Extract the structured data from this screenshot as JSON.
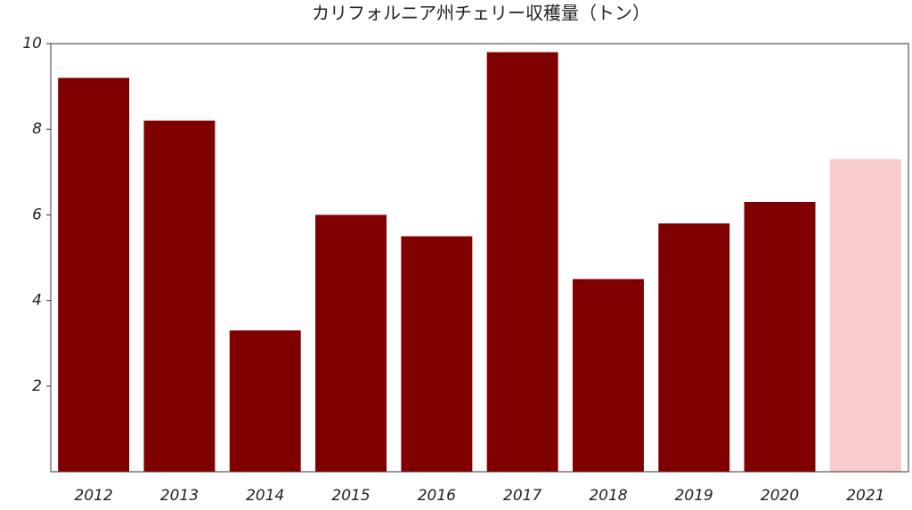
{
  "chart_data": {
    "type": "bar",
    "title": "カリフォルニア州チェリー収穫量（トン）",
    "categories": [
      "2012",
      "2013",
      "2014",
      "2015",
      "2016",
      "2017",
      "2018",
      "2019",
      "2020",
      "2021"
    ],
    "values": [
      9.2,
      8.2,
      3.3,
      6.0,
      5.5,
      9.8,
      4.5,
      5.8,
      6.3,
      7.3
    ],
    "colors": [
      "#800000",
      "#800000",
      "#800000",
      "#800000",
      "#800000",
      "#800000",
      "#800000",
      "#800000",
      "#800000",
      "#f8cccc"
    ],
    "ylim": [
      0,
      10
    ],
    "yticks": [
      2,
      4,
      6,
      8,
      10
    ]
  }
}
